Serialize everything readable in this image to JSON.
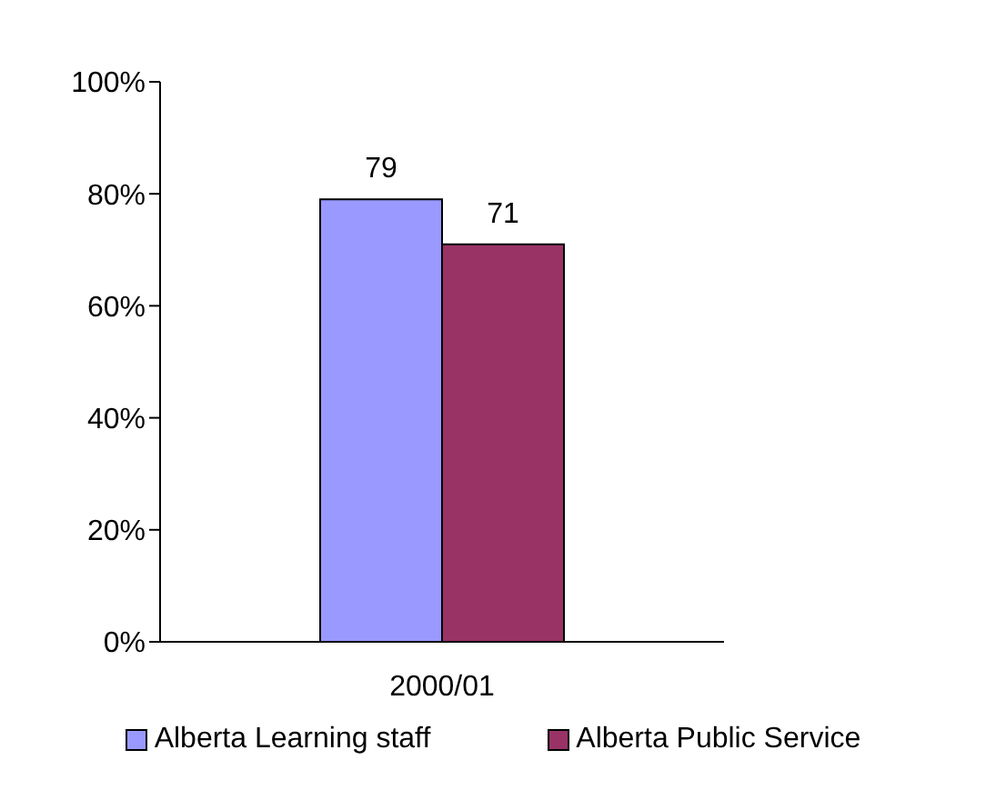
{
  "chart_data": {
    "type": "bar",
    "categories": [
      "2000/01"
    ],
    "series": [
      {
        "name": "Alberta Learning staff",
        "color": "#9999ff",
        "values": [
          79
        ]
      },
      {
        "name": "Alberta Public Service",
        "color": "#993366",
        "values": [
          71
        ]
      }
    ],
    "ylim": [
      0,
      100
    ],
    "yticks": [
      {
        "value": 0,
        "label": "0%"
      },
      {
        "value": 20,
        "label": "20%"
      },
      {
        "value": 40,
        "label": "40%"
      },
      {
        "value": 60,
        "label": "60%"
      },
      {
        "value": 80,
        "label": "80%"
      },
      {
        "value": 100,
        "label": "100%"
      }
    ],
    "data_labels": true,
    "grid": false,
    "legend": "bottom"
  }
}
